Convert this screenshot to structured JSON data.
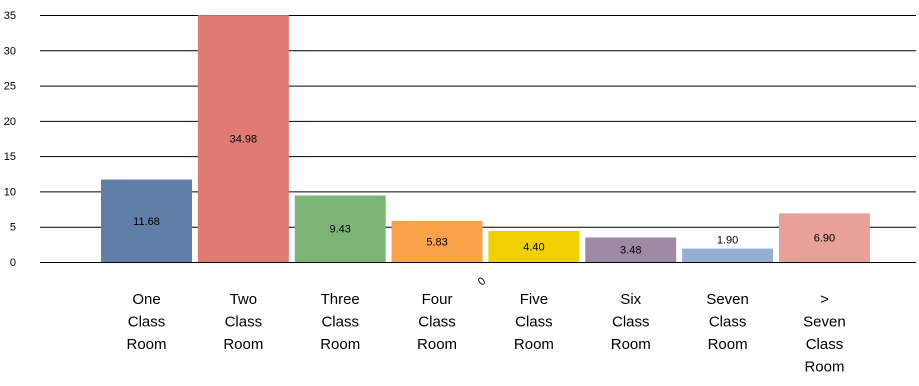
{
  "chart_data": {
    "type": "bar",
    "categories": [
      [
        "One",
        "Class",
        "Room"
      ],
      [
        "Two",
        "Class",
        "Room"
      ],
      [
        "Three",
        "Class",
        "Room"
      ],
      [
        "Four",
        "Class",
        "Room"
      ],
      [
        "Five",
        "Class",
        "Room"
      ],
      [
        "Six",
        "Class",
        "Room"
      ],
      [
        "Seven",
        "Class",
        "Room"
      ],
      [
        ">",
        "Seven",
        "Class",
        "Room"
      ]
    ],
    "values": [
      11.68,
      34.98,
      9.43,
      5.83,
      4.4,
      3.48,
      1.9,
      6.9
    ],
    "data_labels": [
      "11.68",
      "34.98",
      "9.43",
      "5.83",
      "4.40",
      "3.48",
      "1.90",
      "6.90"
    ],
    "colors": [
      "#5f7ea8",
      "#e07b73",
      "#7cb576",
      "#f9a24a",
      "#f0d000",
      "#9e8aa4",
      "#93afd4",
      "#e8a198"
    ],
    "yticks": [
      0,
      5,
      10,
      15,
      20,
      25,
      30,
      35
    ],
    "ylim": [
      0,
      35
    ],
    "grid": true,
    "stray_label": "0",
    "title": "",
    "xlabel": "",
    "ylabel": ""
  }
}
